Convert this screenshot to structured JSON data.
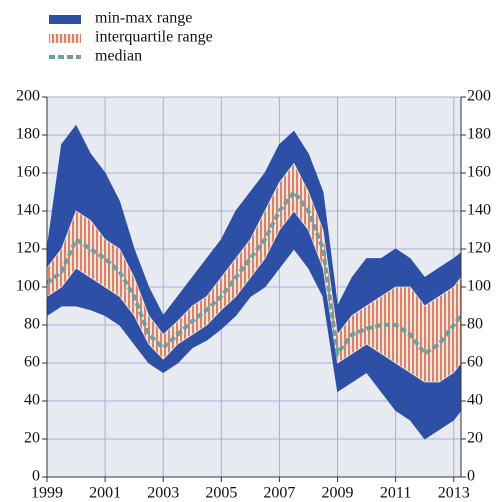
{
  "chart_data": {
    "type": "range",
    "x": [
      1999,
      1999.5,
      2000,
      2000.5,
      2001,
      2001.5,
      2002,
      2002.5,
      2003,
      2003.5,
      2004,
      2004.5,
      2005,
      2005.5,
      2006,
      2006.5,
      2007,
      2007.5,
      2008,
      2008.5,
      2009,
      2009.5,
      2010,
      2010.5,
      2011,
      2011.5,
      2012,
      2012.5,
      2013,
      2013.25
    ],
    "series": [
      {
        "name": "min-max range",
        "color": "#2d4fa6",
        "low": [
          85,
          90,
          90,
          88,
          85,
          80,
          70,
          60,
          55,
          60,
          68,
          72,
          78,
          85,
          95,
          100,
          110,
          120,
          110,
          95,
          45,
          50,
          55,
          45,
          35,
          30,
          20,
          25,
          30,
          35
        ],
        "high": [
          120,
          175,
          185,
          170,
          160,
          145,
          120,
          100,
          85,
          95,
          105,
          115,
          125,
          140,
          150,
          160,
          175,
          182,
          170,
          150,
          90,
          105,
          115,
          115,
          120,
          115,
          105,
          110,
          115,
          118
        ]
      },
      {
        "name": "interquartile range",
        "color": "#d9826b",
        "low": [
          95,
          100,
          110,
          105,
          100,
          95,
          85,
          70,
          62,
          70,
          75,
          80,
          88,
          95,
          105,
          115,
          130,
          140,
          130,
          110,
          60,
          65,
          70,
          65,
          60,
          55,
          50,
          50,
          55,
          60
        ],
        "high": [
          110,
          120,
          140,
          135,
          125,
          120,
          105,
          85,
          75,
          82,
          90,
          95,
          105,
          115,
          125,
          140,
          155,
          165,
          150,
          130,
          75,
          85,
          90,
          95,
          100,
          100,
          90,
          95,
          100,
          105
        ]
      },
      {
        "name": "median",
        "color": "#6f9ea3",
        "values": [
          102,
          108,
          125,
          120,
          115,
          108,
          95,
          75,
          68,
          75,
          82,
          88,
          95,
          105,
          115,
          125,
          140,
          150,
          140,
          120,
          65,
          75,
          78,
          80,
          80,
          75,
          65,
          70,
          80,
          85
        ]
      }
    ],
    "xlim": [
      1999,
      2013.25
    ],
    "xticks": [
      1999,
      2001,
      2003,
      2005,
      2007,
      2009,
      2011,
      2013
    ],
    "ylim": [
      0,
      200
    ],
    "yticks": [
      0,
      20,
      40,
      60,
      80,
      100,
      120,
      140,
      160,
      180,
      200
    ],
    "y2lim": [
      0,
      200
    ],
    "y2ticks": [
      0,
      20,
      40,
      60,
      80,
      100,
      120,
      140,
      160,
      180,
      200
    ],
    "grid": true,
    "legend": "top-left"
  }
}
